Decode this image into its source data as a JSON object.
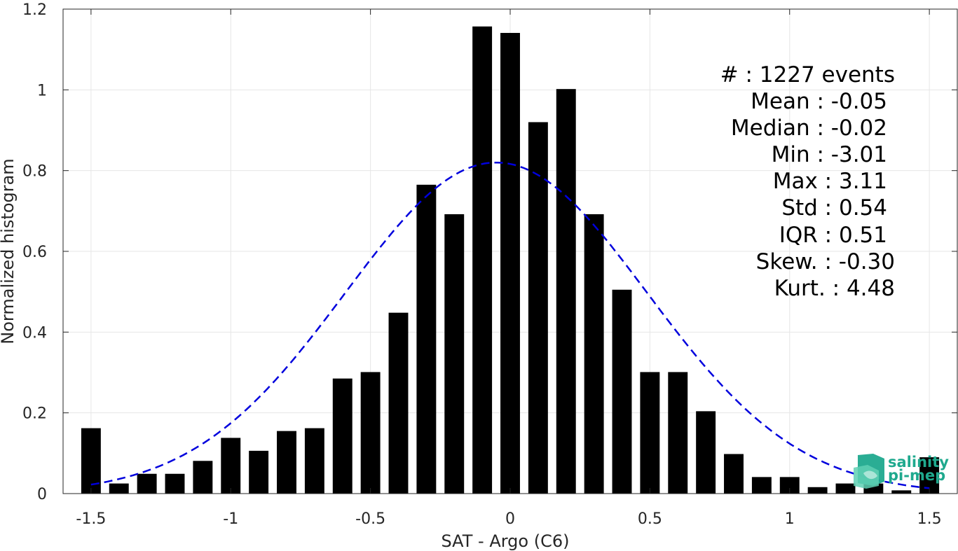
{
  "chart_data": {
    "type": "bar",
    "xlabel": "SAT - Argo (C6)",
    "ylabel": "Normalized histogram",
    "xlim": [
      -1.6,
      1.6
    ],
    "ylim": [
      0,
      1.2
    ],
    "x_ticks": [
      "-1.5",
      "-1",
      "-0.5",
      "0",
      "0.5",
      "1",
      "1.5"
    ],
    "y_ticks": [
      "0",
      "0.2",
      "0.4",
      "0.6",
      "0.8",
      "1",
      "1.2"
    ],
    "grid": true,
    "bin_centers": [
      -1.5,
      -1.4,
      -1.3,
      -1.2,
      -1.1,
      -1.0,
      -0.9,
      -0.8,
      -0.7,
      -0.6,
      -0.5,
      -0.4,
      -0.3,
      -0.2,
      -0.1,
      0.0,
      0.1,
      0.2,
      0.3,
      0.4,
      0.5,
      0.6,
      0.7,
      0.8,
      0.9,
      1.0,
      1.1,
      1.2,
      1.3,
      1.4,
      1.5
    ],
    "bin_width": 0.07,
    "values": [
      0.162,
      0.025,
      0.049,
      0.049,
      0.081,
      0.138,
      0.106,
      0.155,
      0.162,
      0.285,
      0.301,
      0.448,
      0.765,
      0.692,
      1.157,
      1.141,
      0.92,
      1.002,
      0.692,
      0.505,
      0.301,
      0.301,
      0.204,
      0.098,
      0.041,
      0.041,
      0.016,
      0.025,
      0.025,
      0.008,
      0.09
    ],
    "bar_color": "#000000",
    "fit_curve": {
      "name": "gaussian fit",
      "style": "dashed",
      "color": "#0000dd",
      "mean": -0.05,
      "std": 0.54,
      "scale": 0.82,
      "x_range": [
        -1.5,
        1.5
      ]
    },
    "stats": {
      "count": "#  : 1227 events",
      "mean": "Mean : -0.05",
      "median": "Median : -0.02",
      "min": "Min : -3.01",
      "max": "Max : 3.11",
      "std": "Std : 0.54",
      "iqr": "IQR : 0.51",
      "skew": "Skew. : -0.30",
      "kurt": "Kurt. : 4.48"
    }
  },
  "logo": {
    "line1": "salinity",
    "line2": "pi-mep",
    "color": "#1fa98e"
  }
}
